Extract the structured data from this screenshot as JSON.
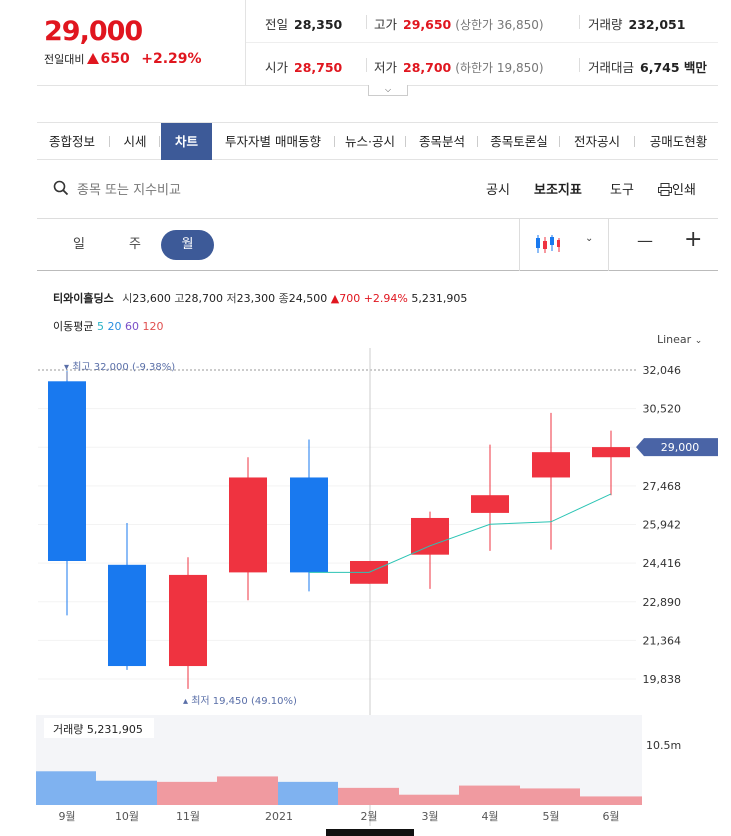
{
  "quote": {
    "price": "29,000",
    "change_label": "전일대비",
    "change_amount": "650",
    "change_percent": "+2.29%",
    "up_color": "#e0161f"
  },
  "stats": {
    "prev_label": "전일",
    "prev_value": "28,350",
    "high_label": "고가",
    "high_value": "29,650",
    "upper_limit": "(상한가 36,850)",
    "volume_label": "거래량",
    "volume_value": "232,051",
    "open_label": "시가",
    "open_value": "28,750",
    "low_label": "저가",
    "low_value": "28,700",
    "lower_limit": "(하한가 19,850)",
    "amount_label": "거래대금",
    "amount_value": "6,745 백만"
  },
  "tabs": [
    "종합정보",
    "시세",
    "차트",
    "투자자별 매매동향",
    "뉴스·공시",
    "종목분석",
    "종목토론실",
    "전자공시",
    "공매도현황"
  ],
  "active_tab": "차트",
  "toolbar": {
    "search_placeholder": "종목 또는 지수비교",
    "disclosure": "공시",
    "indicator": "보조지표",
    "tools": "도구",
    "print": "인쇄"
  },
  "periods": {
    "day": "일",
    "week": "주",
    "month": "월",
    "active": "월"
  },
  "zoom": {
    "out": "—",
    "in": "+"
  },
  "stock_info": {
    "name": "티와이홀딩스",
    "open_label": "시",
    "open": "23,600",
    "high_label": "고",
    "high": "28,700",
    "low_label": "저",
    "low": "23,300",
    "close_label": "종",
    "close": "24,500",
    "change": "700",
    "change_pct": "+2.94%",
    "volume": "5,231,905"
  },
  "moving_average": {
    "label": "이동평균",
    "p5": "5",
    "p20": "20",
    "p60": "60",
    "p120": "120",
    "c5": "#2bb3c6",
    "c20": "#2a8ee0",
    "c60": "#7a4fc8",
    "c120": "#e05050"
  },
  "scale_label": "Linear",
  "chart_data": {
    "type": "candlestick",
    "x_labels": [
      "9월",
      "10월",
      "11월",
      "2021",
      "2월",
      "3월",
      "4월",
      "5월",
      "6월"
    ],
    "y_ticks": [
      "32,046",
      "30,520",
      "28,994",
      "27,468",
      "25,942",
      "24,416",
      "22,890",
      "21,364",
      "19,838"
    ],
    "ylim": [
      19200,
      32700
    ],
    "current_price": 29000,
    "current_price_label": "29,000",
    "max_label": "최고 32,000 (-9.38%)",
    "min_label": "최저 19,450 (49.10%)",
    "volume_label": "거래량 5,231,905",
    "volume_axis_label": "10.5m",
    "volume_max": 10500000,
    "up_color": "#ef3340",
    "down_color": "#1979ef",
    "candles": [
      {
        "open": 31600,
        "high": 32000,
        "low": 22350,
        "close": 24500
      },
      {
        "open": 24350,
        "high": 26000,
        "low": 20200,
        "close": 20350
      },
      {
        "open": 20350,
        "high": 24650,
        "low": 19450,
        "close": 23950
      },
      {
        "open": 24050,
        "high": 28600,
        "low": 22950,
        "close": 27800
      },
      {
        "open": 27800,
        "high": 29300,
        "low": 23300,
        "close": 24050
      },
      {
        "open": 23600,
        "high": 24500,
        "low": 23600,
        "close": 24500
      },
      {
        "open": 24750,
        "high": 26450,
        "low": 23400,
        "close": 26200
      },
      {
        "open": 26400,
        "high": 29100,
        "low": 24900,
        "close": 27100
      },
      {
        "open": 27800,
        "high": 30350,
        "low": 24950,
        "close": 28800
      },
      {
        "open": 28600,
        "high": 29650,
        "low": 27100,
        "close": 29000
      }
    ],
    "ma5": [
      null,
      null,
      null,
      null,
      24050,
      24050,
      25100,
      25950,
      26050,
      27150
    ],
    "volumes": [
      5900000,
      4250000,
      4050000,
      5000000,
      4050000,
      3000000,
      1800000,
      3400000,
      2900000,
      1500000
    ]
  }
}
